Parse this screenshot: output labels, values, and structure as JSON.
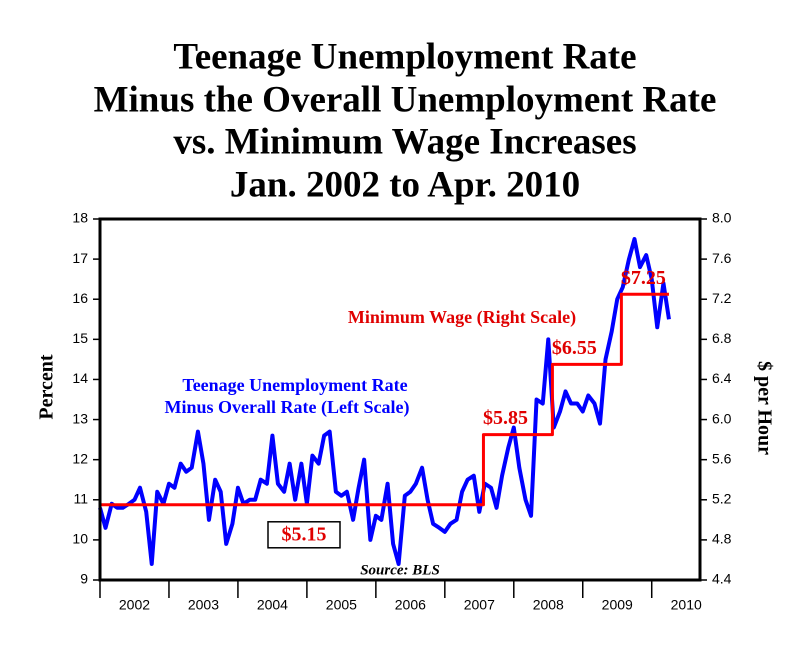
{
  "chart_data": {
    "type": "line",
    "title": [
      "Teenage Unemployment Rate",
      "Minus the Overall Unemployment Rate",
      "vs. Minimum Wage Increases",
      "Jan. 2002 to Apr. 2010"
    ],
    "ylabel": "Percent",
    "y2label": "$ per Hour",
    "annotations": [
      "Teenage Unemployment Rate",
      "Minus Overall Rate (Left Scale)",
      "Minimum Wage (Right Scale)",
      "Source: BLS"
    ],
    "xlim": [
      2002,
      2010.7
    ],
    "xticks": [
      2002,
      2003,
      2004,
      2005,
      2006,
      2007,
      2008,
      2009,
      2010
    ],
    "ylim": [
      9,
      18
    ],
    "yticks": [
      9,
      10,
      11,
      12,
      13,
      14,
      15,
      16,
      17,
      18
    ],
    "y2lim": [
      4.4,
      8
    ],
    "y2ticks": [
      4.4,
      4.8,
      5.2,
      5.6,
      {
        "value": 6,
        "label": "6.0"
      },
      6.4,
      6.8,
      7.2,
      7.6,
      {
        "value": 8,
        "label": "8.0"
      }
    ],
    "series": [
      {
        "color": "#0000ff",
        "x": [
          2002,
          2002.08,
          2002.17,
          2002.25,
          2002.33,
          2002.42,
          2002.5,
          2002.58,
          2002.67,
          2002.75,
          2002.83,
          2002.92,
          2003,
          2003.08,
          2003.17,
          2003.25,
          2003.33,
          2003.42,
          2003.5,
          2003.58,
          2003.67,
          2003.75,
          2003.83,
          2003.92,
          2004,
          2004.08,
          2004.17,
          2004.25,
          2004.33,
          2004.42,
          2004.5,
          2004.58,
          2004.67,
          2004.75,
          2004.83,
          2004.92,
          2005,
          2005.08,
          2005.17,
          2005.25,
          2005.33,
          2005.42,
          2005.5,
          2005.58,
          2005.67,
          2005.75,
          2005.83,
          2005.92,
          2006,
          2006.08,
          2006.17,
          2006.25,
          2006.33,
          2006.42,
          2006.5,
          2006.58,
          2006.67,
          2006.75,
          2006.83,
          2006.92,
          2007,
          2007.08,
          2007.17,
          2007.25,
          2007.33,
          2007.42,
          2007.5,
          2007.58,
          2007.67,
          2007.75,
          2007.83,
          2007.92,
          2008,
          2008.08,
          2008.17,
          2008.25,
          2008.33,
          2008.42,
          2008.5,
          2008.58,
          2008.67,
          2008.75,
          2008.83,
          2008.92,
          2009,
          2009.08,
          2009.17,
          2009.25,
          2009.33,
          2009.42,
          2009.5,
          2009.58,
          2009.67,
          2009.75,
          2009.83,
          2009.92,
          2010,
          2010.08,
          2010.17,
          2010.25
        ],
        "values": [
          10.8,
          10.3,
          10.9,
          10.8,
          10.8,
          10.9,
          11.0,
          11.3,
          10.7,
          9.4,
          11.2,
          10.9,
          11.4,
          11.3,
          11.9,
          11.7,
          11.8,
          12.7,
          11.9,
          10.5,
          11.5,
          11.2,
          9.9,
          10.4,
          11.3,
          10.9,
          11.0,
          11.0,
          11.5,
          11.4,
          12.6,
          11.4,
          11.2,
          11.9,
          11.0,
          11.9,
          10.9,
          12.1,
          11.9,
          12.6,
          12.7,
          11.2,
          11.1,
          11.2,
          10.5,
          11.3,
          12.0,
          10.0,
          10.6,
          10.5,
          11.4,
          9.9,
          9.4,
          11.1,
          11.2,
          11.4,
          11.8,
          11.0,
          10.4,
          10.3,
          10.2,
          10.4,
          10.5,
          11.2,
          11.5,
          11.6,
          10.7,
          11.4,
          11.3,
          10.8,
          11.6,
          12.3,
          12.8,
          11.8,
          11.0,
          10.6,
          13.5,
          13.4,
          15.0,
          12.8,
          13.2,
          13.7,
          13.4,
          13.4,
          13.2,
          13.6,
          13.4,
          12.9,
          14.5,
          15.2,
          16.0,
          16.3,
          17.0,
          17.5,
          16.8,
          17.1,
          16.5,
          15.3,
          16.4,
          15.5
        ]
      },
      {
        "color": "#ff0000",
        "axis": "y2",
        "step": true,
        "x": [
          2002,
          2007.56,
          2008.56,
          2009.56,
          2010.25
        ],
        "values": [
          5.15,
          5.85,
          6.55,
          7.25,
          7.25
        ],
        "value_labels": [
          "$5.15",
          "$5.85",
          "$6.55",
          "$7.25",
          null
        ]
      }
    ]
  }
}
